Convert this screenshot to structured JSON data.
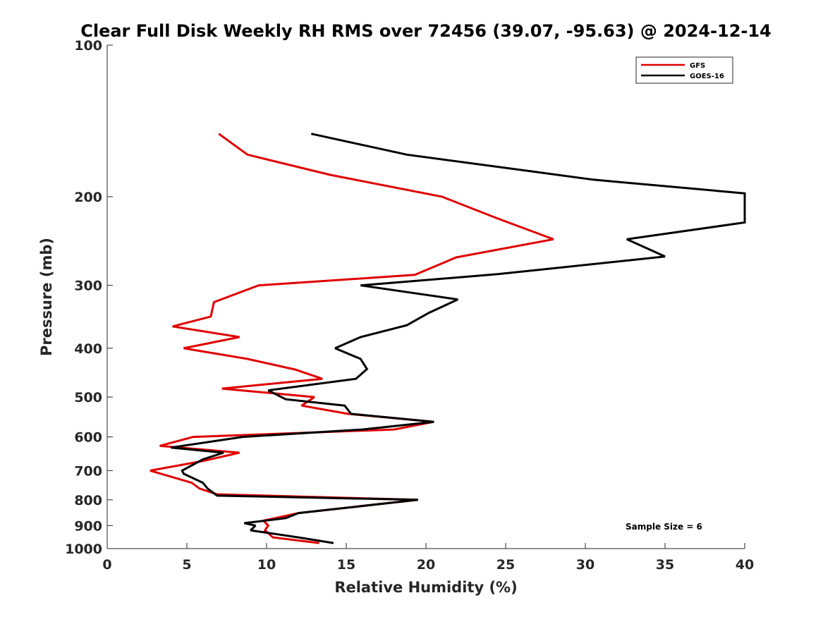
{
  "chart_data": {
    "type": "line",
    "title": "Clear Full Disk Weekly RH RMS over 72456 (39.07, -95.63) @ 2024-12-14",
    "xlabel": "Relative Humidity (%)",
    "ylabel": "Pressure (mb)",
    "xlim": [
      0,
      40
    ],
    "ylim": [
      100,
      1000
    ],
    "yscale": "log",
    "y_reversed": true,
    "grid": false,
    "legend_position": "top-right",
    "xticks": [
      "0",
      "5",
      "10",
      "15",
      "20",
      "25",
      "30",
      "35",
      "40"
    ],
    "xtick_values": [
      0,
      5,
      10,
      15,
      20,
      25,
      30,
      35,
      40
    ],
    "yticks": [
      "100",
      "200",
      "300",
      "400",
      "500",
      "600",
      "700",
      "800",
      "900",
      "1000"
    ],
    "ytick_values": [
      100,
      200,
      300,
      400,
      500,
      600,
      700,
      800,
      900,
      1000
    ],
    "annotation": "Sample Size = 6",
    "series": [
      {
        "name": "GFS",
        "color": "#e00000",
        "points": [
          [
            7.0,
            150
          ],
          [
            8.8,
            165
          ],
          [
            14.0,
            181
          ],
          [
            21.0,
            200
          ],
          [
            24.5,
            221
          ],
          [
            28.0,
            243
          ],
          [
            21.9,
            264
          ],
          [
            19.3,
            286
          ],
          [
            9.5,
            300
          ],
          [
            6.7,
            324
          ],
          [
            6.5,
            346
          ],
          [
            4.1,
            362
          ],
          [
            8.3,
            380
          ],
          [
            4.8,
            400
          ],
          [
            8.8,
            420
          ],
          [
            11.8,
            441
          ],
          [
            13.5,
            460
          ],
          [
            7.2,
            481
          ],
          [
            13.0,
            500
          ],
          [
            12.2,
            520
          ],
          [
            15.1,
            540
          ],
          [
            20.5,
            560
          ],
          [
            18.0,
            580
          ],
          [
            5.4,
            600
          ],
          [
            3.3,
            625
          ],
          [
            8.3,
            645
          ],
          [
            6.0,
            670
          ],
          [
            2.7,
            700
          ],
          [
            5.3,
            740
          ],
          [
            5.8,
            760
          ],
          [
            6.9,
            780
          ],
          [
            19.5,
            800
          ],
          [
            12.0,
            850
          ],
          [
            9.8,
            880
          ],
          [
            10.1,
            900
          ],
          [
            9.9,
            920
          ],
          [
            10.4,
            950
          ],
          [
            13.3,
            975
          ]
        ]
      },
      {
        "name": "GOES-16",
        "color": "#000000",
        "points": [
          [
            12.8,
            150
          ],
          [
            18.8,
            165
          ],
          [
            30.5,
            185
          ],
          [
            40.0,
            197
          ],
          [
            40.0,
            225
          ],
          [
            32.6,
            243
          ],
          [
            35.0,
            263
          ],
          [
            24.5,
            285
          ],
          [
            15.9,
            300
          ],
          [
            22.0,
            320
          ],
          [
            20.2,
            340
          ],
          [
            18.8,
            360
          ],
          [
            15.9,
            380
          ],
          [
            14.3,
            400
          ],
          [
            15.9,
            420
          ],
          [
            16.3,
            440
          ],
          [
            15.6,
            460
          ],
          [
            10.1,
            485
          ],
          [
            11.2,
            505
          ],
          [
            14.9,
            520
          ],
          [
            15.3,
            540
          ],
          [
            20.5,
            560
          ],
          [
            16.0,
            580
          ],
          [
            8.5,
            600
          ],
          [
            4.0,
            630
          ],
          [
            7.3,
            645
          ],
          [
            6.0,
            665
          ],
          [
            4.7,
            700
          ],
          [
            4.8,
            710
          ],
          [
            6.0,
            740
          ],
          [
            6.3,
            760
          ],
          [
            6.9,
            785
          ],
          [
            19.5,
            800
          ],
          [
            12.0,
            850
          ],
          [
            11.2,
            870
          ],
          [
            8.6,
            890
          ],
          [
            9.3,
            900
          ],
          [
            9.0,
            920
          ],
          [
            12.0,
            950
          ],
          [
            14.2,
            975
          ]
        ]
      }
    ]
  }
}
